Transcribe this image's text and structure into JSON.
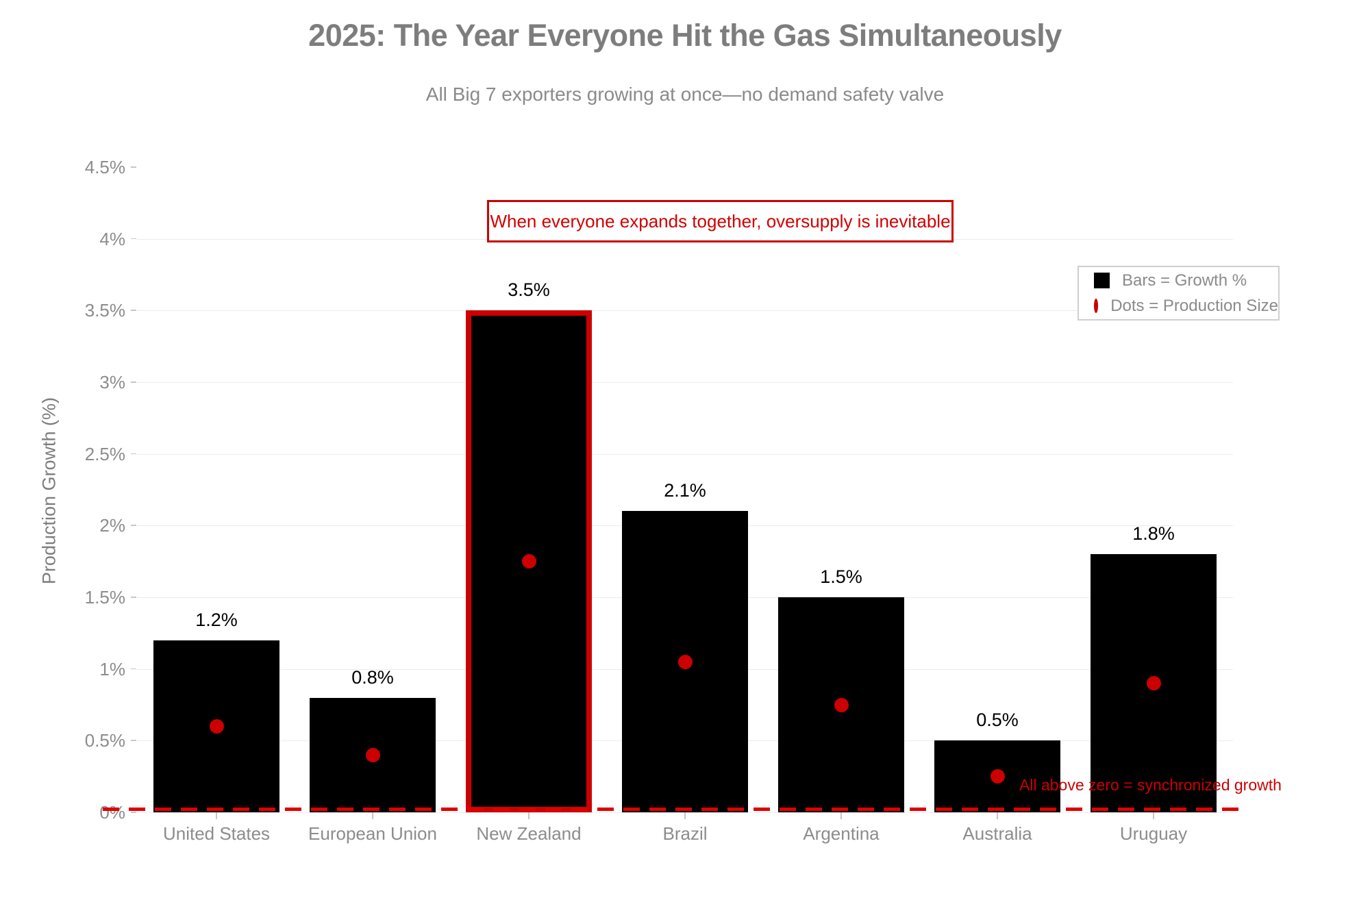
{
  "header": {
    "title": "2025: The Year Everyone Hit the Gas Simultaneously",
    "subtitle": "All Big 7 exporters growing at once—no demand safety valve"
  },
  "y_axis": {
    "title": "Production Growth (%)",
    "tick_labels": [
      "0%",
      "0.5%",
      "1%",
      "1.5%",
      "2%",
      "2.5%",
      "3%",
      "3.5%",
      "4%",
      "4.5%"
    ]
  },
  "legend": {
    "items": [
      {
        "swatch": "black-square",
        "label": "Bars = Growth %"
      },
      {
        "swatch": "red-dot",
        "label": "Dots = Production Size"
      }
    ]
  },
  "annotations": {
    "box": {
      "text": "When everyone expands together, oversupply is inevitable"
    },
    "zero_note": {
      "text": "All above zero = synchronized growth"
    }
  },
  "chart_data": {
    "type": "bar",
    "title": "2025: The Year Everyone Hit the Gas Simultaneously",
    "subtitle": "All Big 7 exporters growing at once—no demand safety valve",
    "categories": [
      "United States",
      "European Union",
      "New Zealand",
      "Brazil",
      "Argentina",
      "Australia",
      "Uruguay"
    ],
    "series": [
      {
        "name": "Growth %",
        "type": "bar",
        "values": [
          1.2,
          0.8,
          3.5,
          2.1,
          1.5,
          0.5,
          1.8
        ],
        "data_labels": [
          "1.2%",
          "0.8%",
          "3.5%",
          "2.1%",
          "1.5%",
          "0.5%",
          "1.8%"
        ]
      },
      {
        "name": "Production Size",
        "type": "scatter-dot",
        "values": [
          0.6,
          0.4,
          1.75,
          1.05,
          0.75,
          0.25,
          0.9
        ]
      }
    ],
    "highlighted_category": "New Zealand",
    "xlabel": "",
    "ylabel": "Production Growth (%)",
    "ylim": [
      0,
      4.5
    ],
    "ytick_step": 0.5,
    "gridlines": [
      0,
      0.5,
      1,
      1.5,
      2,
      2.5,
      3,
      3.5,
      4
    ],
    "grid": true,
    "legend_position": "top-right",
    "zero_line": {
      "value": 0,
      "style": "dashed",
      "color": "#e00000"
    }
  },
  "colors": {
    "bar": "#000000",
    "accent": "#cc0000",
    "dash": "#e00000",
    "value_label": "#000000",
    "title": "#7d7d7d",
    "muted_text": "#8c8c8c"
  }
}
